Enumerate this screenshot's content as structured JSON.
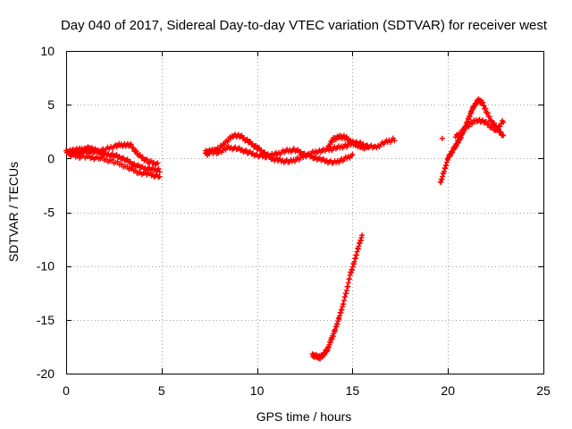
{
  "chart_data": {
    "type": "scatter",
    "title": "Day 040 of 2017, Sidereal Day-to-day VTEC variation (SDTVAR) for receiver west",
    "xlabel": "GPS time / hours",
    "ylabel": "SDTVAR / TECUs",
    "xlim": [
      0,
      25
    ],
    "ylim": [
      -20,
      10
    ],
    "xticks": [
      0,
      5,
      10,
      15,
      20,
      25
    ],
    "yticks": [
      -20,
      -15,
      -10,
      -5,
      0,
      5,
      10
    ],
    "grid": true,
    "marker": "+",
    "series": [
      {
        "name": "SDTVAR",
        "color": "#ff0000",
        "x": [
          0.0,
          0.3,
          0.6,
          1.0,
          1.3,
          1.7,
          2.0,
          2.5,
          3.0,
          3.5,
          4.0,
          4.5,
          4.9,
          0.2,
          0.6,
          1.0,
          1.5,
          2.0,
          2.6,
          3.0,
          3.4,
          3.8,
          4.3,
          4.8,
          0.5,
          1.2,
          1.8,
          2.5,
          3.2,
          3.8,
          4.4,
          4.9
        ],
        "y": [
          0.6,
          0.7,
          0.8,
          0.9,
          1.0,
          0.6,
          0.4,
          0.3,
          0.0,
          -0.5,
          -0.9,
          -1.0,
          -1.1,
          0.3,
          0.5,
          0.6,
          0.6,
          0.8,
          1.2,
          1.3,
          1.2,
          0.3,
          -0.3,
          -0.5,
          0.2,
          0.1,
          0.0,
          -0.3,
          -0.8,
          -1.3,
          -1.5,
          -1.7
        ]
      },
      {
        "name": "SDTVAR",
        "color": "#ff0000",
        "x": [
          7.3,
          7.6,
          8.0,
          8.4,
          8.8,
          9.2,
          9.6,
          10.0,
          10.4,
          10.8,
          11.2,
          11.7,
          12.2,
          12.7,
          13.2,
          13.7,
          14.2,
          14.7,
          15.2,
          15.7,
          16.2,
          16.7,
          17.2,
          7.3,
          8.0,
          8.5,
          9.0,
          9.5,
          10.0,
          10.5,
          11.0,
          11.5,
          12.0,
          12.5,
          13.0,
          13.5,
          14.0,
          14.5,
          15.0,
          13.7,
          14.0,
          14.3,
          14.6,
          14.9,
          15.2,
          15.5,
          15.8
        ],
        "y": [
          0.6,
          0.7,
          0.9,
          1.6,
          2.2,
          2.0,
          1.5,
          1.0,
          0.5,
          0.0,
          -0.2,
          -0.3,
          0.0,
          0.4,
          0.7,
          0.8,
          1.0,
          1.2,
          1.5,
          1.2,
          1.0,
          1.5,
          1.8,
          0.4,
          0.6,
          1.0,
          0.9,
          0.6,
          0.3,
          0.2,
          0.4,
          0.7,
          0.8,
          0.4,
          0.1,
          -0.2,
          -0.4,
          -0.1,
          0.3,
          1.0,
          1.8,
          2.0,
          2.0,
          1.6,
          1.3,
          1.0,
          1.1
        ]
      },
      {
        "name": "SDTVAR",
        "color": "#ff0000",
        "x": [
          12.9,
          13.1,
          13.3,
          13.5,
          13.7,
          13.9,
          14.1,
          14.3,
          14.5,
          14.7,
          14.9,
          15.1,
          15.3,
          15.5
        ],
        "y": [
          -18.3,
          -18.4,
          -18.5,
          -18.2,
          -17.7,
          -16.8,
          -15.9,
          -14.8,
          -13.6,
          -12.2,
          -10.7,
          -9.6,
          -8.3,
          -7.2
        ]
      },
      {
        "name": "SDTVAR",
        "color": "#ff0000",
        "x": [
          19.6,
          19.8,
          20.0,
          20.2,
          20.4,
          20.6,
          20.8,
          21.0,
          21.2,
          21.4,
          21.6,
          21.8,
          22.0,
          22.3,
          22.6,
          22.9,
          20.4,
          20.8,
          21.2,
          21.6,
          22.0,
          22.5,
          22.9,
          19.7
        ],
        "y": [
          -2.3,
          -1.2,
          0.0,
          0.6,
          1.2,
          1.7,
          2.5,
          3.3,
          4.3,
          5.0,
          5.4,
          5.2,
          4.4,
          3.4,
          2.8,
          2.0,
          2.0,
          2.6,
          3.3,
          3.6,
          3.3,
          2.6,
          3.5,
          1.8
        ]
      }
    ]
  }
}
